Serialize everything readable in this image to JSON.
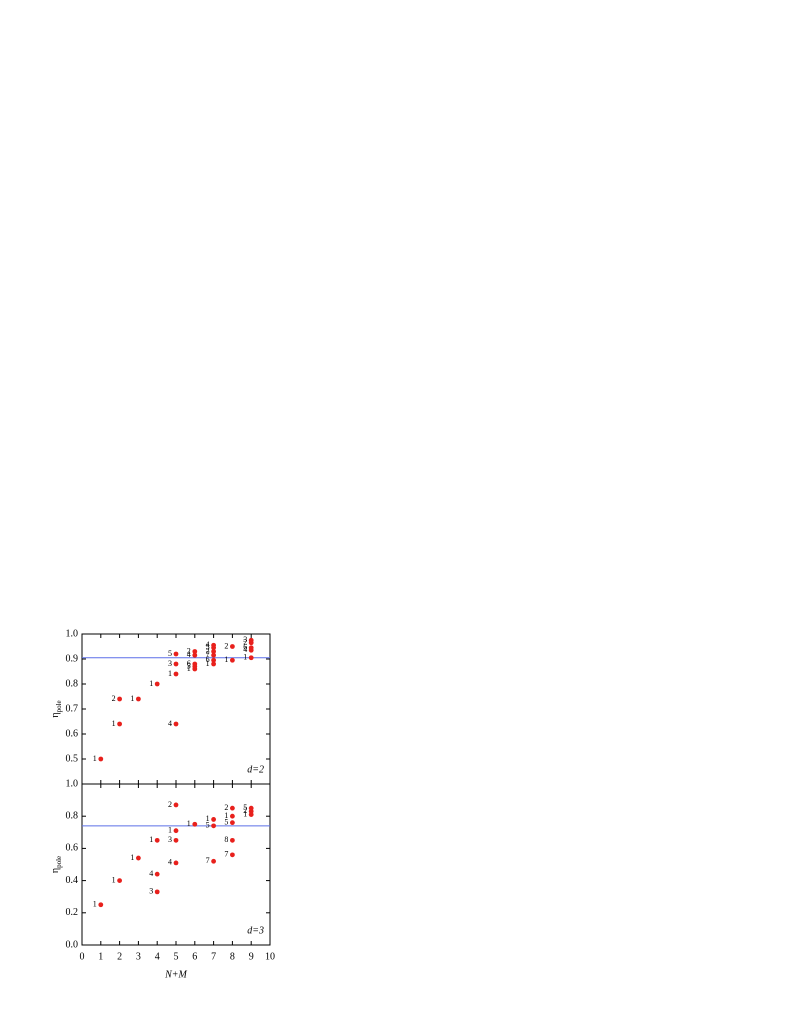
{
  "chart_data": [
    {
      "type": "scatter",
      "annotation": "d=2",
      "ylabel": {
        "text": "η",
        "subscript": "pole"
      },
      "xlim": [
        0,
        10
      ],
      "xticks": [
        0,
        1,
        2,
        3,
        4,
        5,
        6,
        7,
        8,
        9,
        10
      ],
      "ylim": [
        0.4,
        1.0
      ],
      "yticks": [
        0.5,
        0.6,
        0.7,
        0.8,
        0.9,
        {
          "value": 1.0,
          "label": "1.0"
        }
      ],
      "hline": 0.905,
      "hline_color": "#5b6fe8",
      "color": "#e8201c",
      "x": [
        1,
        2,
        2,
        3,
        4,
        5,
        5,
        5,
        5,
        6,
        6,
        6,
        6,
        6,
        7,
        7,
        7,
        7,
        7,
        7,
        8,
        8,
        9,
        9,
        9,
        9,
        9
      ],
      "values": [
        0.5,
        0.64,
        0.74,
        0.74,
        0.8,
        0.64,
        0.84,
        0.88,
        0.92,
        0.86,
        0.88,
        0.87,
        0.93,
        0.915,
        0.955,
        0.945,
        0.93,
        0.915,
        0.895,
        0.88,
        0.95,
        0.895,
        0.975,
        0.965,
        0.945,
        0.935,
        0.905
      ],
      "labels": [
        "1",
        "1",
        "2",
        "1",
        "1",
        "4",
        "1",
        "3",
        "5",
        "1",
        "6",
        "5",
        "2",
        "4",
        "4",
        "5",
        "2",
        "7",
        "6",
        "1",
        "2",
        "1",
        "3",
        "2",
        "6",
        "4",
        "1"
      ]
    },
    {
      "type": "scatter",
      "annotation": "d=3",
      "ylabel": {
        "text": "η",
        "subscript": "pole"
      },
      "xlabel": "N+M",
      "xlim": [
        0,
        10
      ],
      "xticks": [
        0,
        1,
        2,
        3,
        4,
        5,
        6,
        7,
        8,
        9,
        10
      ],
      "ylim": [
        0,
        1.0
      ],
      "yticks": [
        {
          "value": 0,
          "label": "0.0"
        },
        0.2,
        0.4,
        0.6,
        0.8,
        {
          "value": 1.0,
          "label": "1.0"
        }
      ],
      "hline": 0.74,
      "hline_color": "#5b6fe8",
      "color": "#e8201c",
      "x": [
        1,
        2,
        3,
        4,
        4,
        4,
        5,
        5,
        5,
        5,
        6,
        7,
        7,
        7,
        8,
        8,
        8,
        8,
        8,
        9,
        9,
        9
      ],
      "values": [
        0.25,
        0.4,
        0.54,
        0.33,
        0.44,
        0.65,
        0.51,
        0.65,
        0.71,
        0.87,
        0.75,
        0.52,
        0.74,
        0.78,
        0.56,
        0.65,
        0.76,
        0.8,
        0.85,
        0.85,
        0.83,
        0.81
      ],
      "labels": [
        "1",
        "1",
        "1",
        "3",
        "4",
        "1",
        "4",
        "3",
        "1",
        "2",
        "1",
        "7",
        "5",
        "1",
        "7",
        "8",
        "5",
        "1",
        "2",
        "5",
        "2",
        "1"
      ]
    }
  ]
}
